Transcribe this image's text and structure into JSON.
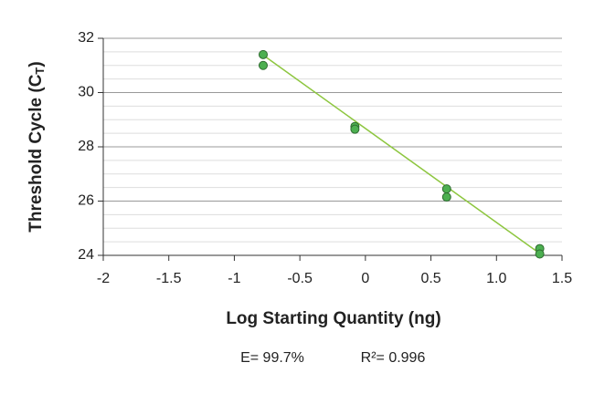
{
  "chart_data": {
    "type": "scatter",
    "xlabel": "Log Starting Quantity (ng)",
    "ylabel": {
      "text": "Threshold Cycle (C",
      "sub": "T",
      "end": ")"
    },
    "annotations": [
      "E= 99.7%",
      "R²= 0.996"
    ],
    "x": [
      -0.78,
      -0.78,
      -0.08,
      -0.08,
      0.62,
      0.62,
      1.33,
      1.33
    ],
    "y": [
      31.4,
      31.0,
      28.75,
      28.65,
      26.45,
      26.15,
      24.25,
      24.05
    ],
    "color": "#4caf50",
    "trendline": {
      "x": [
        -0.8,
        1.35
      ],
      "y": [
        31.45,
        24.0
      ],
      "color": "#8dc63f"
    },
    "xlim": [
      -2,
      1.5
    ],
    "ylim": [
      24,
      32
    ],
    "xticks": [
      -2,
      -1.5,
      -1,
      -0.5,
      0,
      0.5,
      {
        "value": 1,
        "label": "1.0"
      },
      1.5
    ],
    "yticks": [
      24,
      26,
      28,
      30,
      32
    ],
    "minor_yticks": [
      24.5,
      25,
      25.5,
      26.5,
      27,
      27.5,
      28.5,
      29,
      29.5,
      30.5,
      31,
      31.5
    ],
    "grid": true
  }
}
